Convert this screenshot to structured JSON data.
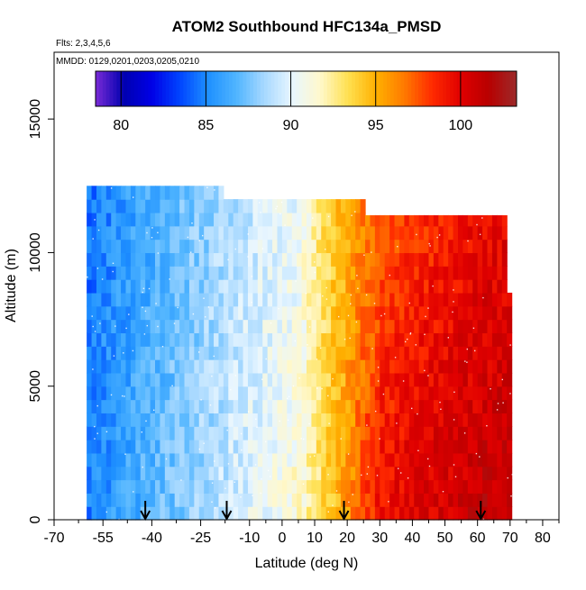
{
  "chart_data": {
    "type": "heatmap",
    "title": "ATOM2 Southbound HFC134a_PMSD",
    "annotations": {
      "flights": "Flts: 2,3,4,5,6",
      "dates": "MMDD: 0129,0201,0203,0205,0210"
    },
    "xlabel": "Latitude (deg N)",
    "ylabel": "Altitude (m)",
    "xlim": [
      -70,
      85
    ],
    "ylim": [
      0,
      17500
    ],
    "x_ticks": [
      -70,
      -55,
      -40,
      -25,
      -10,
      0,
      10,
      20,
      30,
      40,
      50,
      60,
      70,
      80
    ],
    "x_tick_labels": [
      "-70",
      "-55",
      "-40",
      "-25",
      "-10",
      "0",
      "10",
      "20",
      "30",
      "40",
      "50",
      "60",
      "70",
      "80"
    ],
    "x_minor_ticks": [
      -62.5,
      -47.5,
      -32.5,
      -17.5,
      -5,
      5,
      15,
      25,
      35,
      45,
      55,
      65,
      75,
      85
    ],
    "y_ticks": [
      0,
      5000,
      10000,
      15000
    ],
    "y_tick_labels": [
      "0",
      "5000",
      "10000",
      "15000"
    ],
    "colorbar": {
      "range": [
        78.5,
        103.3
      ],
      "ticks": [
        80,
        85,
        90,
        95,
        100
      ],
      "tick_labels": [
        "80",
        "85",
        "90",
        "95",
        "100"
      ],
      "colors": [
        "#7a2bd6",
        "#0000b0",
        "#0000e6",
        "#0044ff",
        "#1e90ff",
        "#4fb4ff",
        "#a6d8ff",
        "#e8f6ff",
        "#fff8cc",
        "#ffe050",
        "#ffb000",
        "#ff7a00",
        "#ff2a00",
        "#e00000",
        "#b80000",
        "#9c2a2a"
      ]
    },
    "flight_markers_lat": [
      -42,
      -17,
      19,
      61
    ],
    "profile": {
      "lat_stops": [
        -63,
        -55,
        -45,
        -35,
        -25,
        -15,
        -5,
        5,
        10,
        15,
        20,
        25,
        30,
        40,
        50,
        60,
        71
      ],
      "value_low": [
        84.5,
        85.5,
        86.5,
        87.5,
        88.5,
        89.5,
        90.5,
        91.5,
        93,
        94.5,
        96,
        98,
        99.5,
        100.2,
        100.7,
        101.3,
        101.5
      ],
      "value_high": [
        84,
        85,
        86,
        87,
        88,
        89,
        89.8,
        90.5,
        92.5,
        94,
        95.5,
        96.5,
        97.5,
        98.3,
        99,
        99.6,
        100
      ]
    },
    "coverage": [
      {
        "from_lat": -60,
        "to_lat": -18,
        "top_alt": 12500
      },
      {
        "from_lat": -18,
        "to_lat": 25,
        "top_alt": 12000
      },
      {
        "from_lat": 25,
        "to_lat": 69,
        "top_alt": 11400
      },
      {
        "from_lat": 69,
        "to_lat": 71,
        "top_alt": 8500
      }
    ],
    "grid": false,
    "legend": "colorbar-top"
  }
}
